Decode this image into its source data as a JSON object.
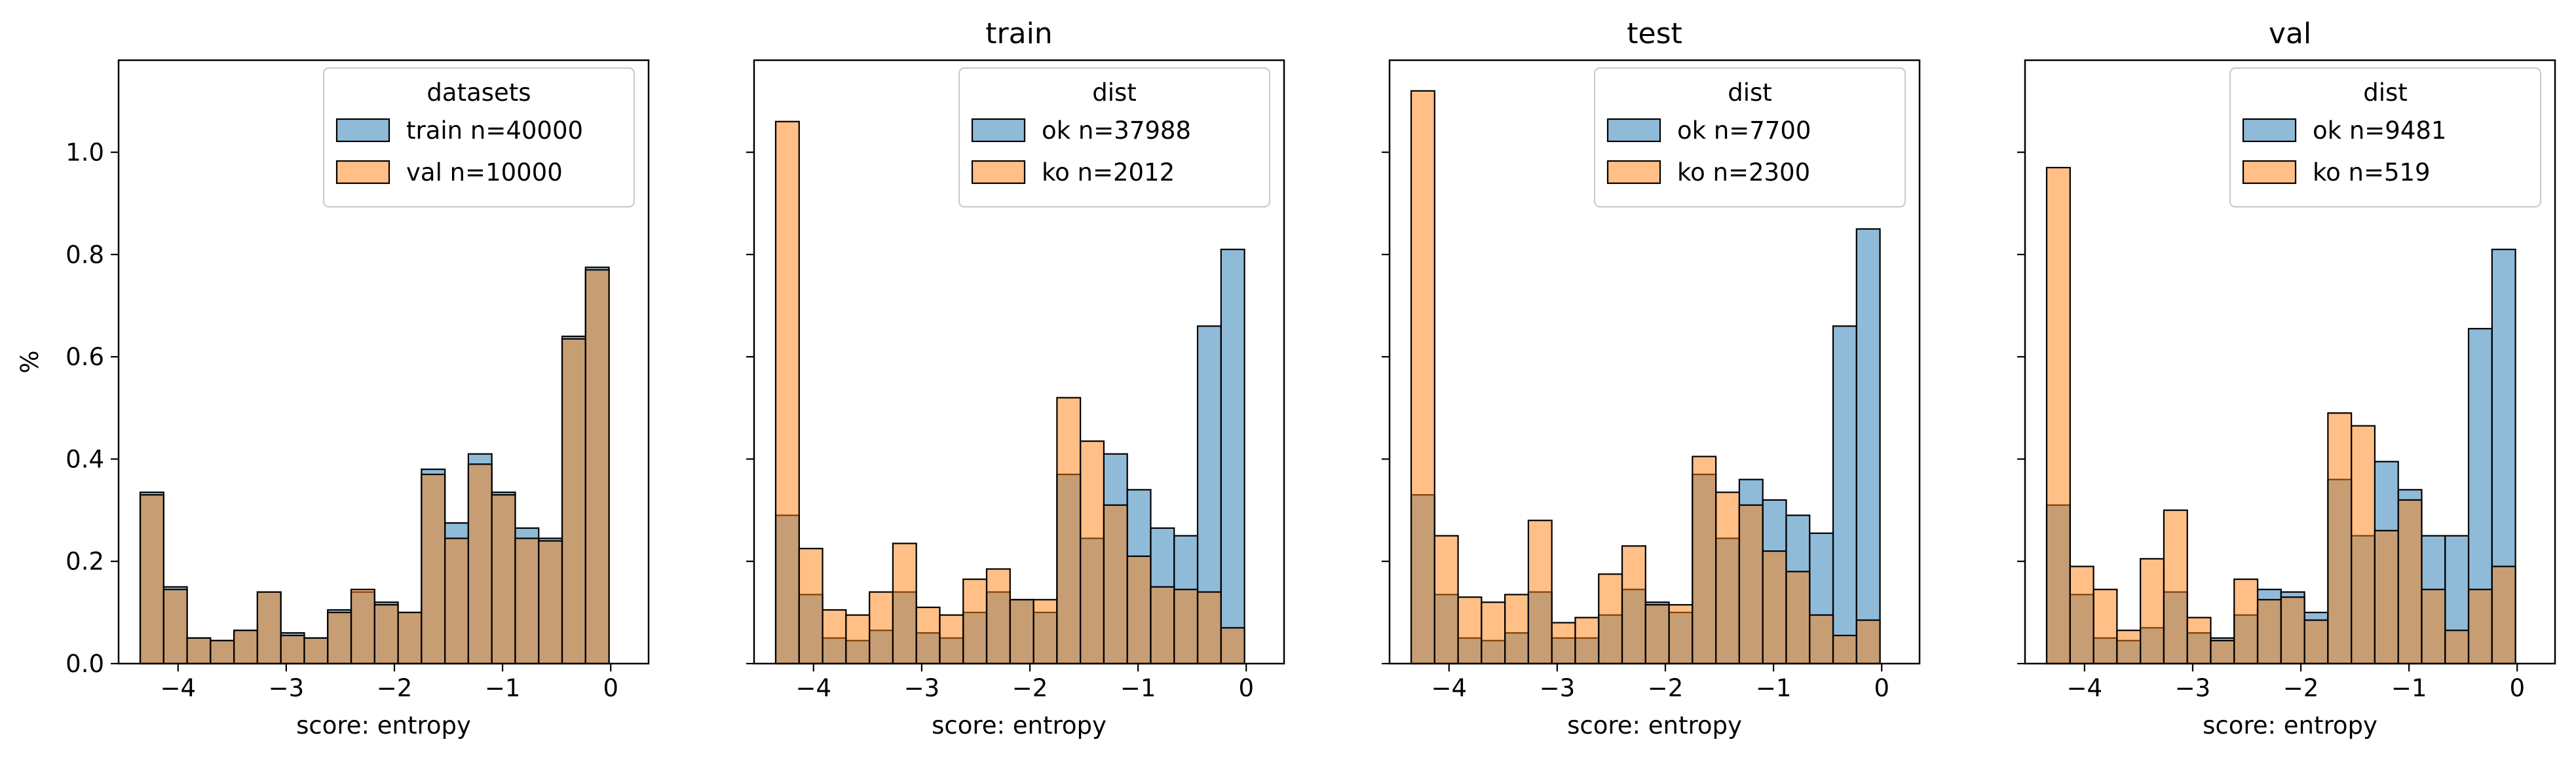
{
  "colors": {
    "series0": "#1f77b4",
    "series1": "#ff7f0e"
  },
  "chart_data": [
    {
      "type": "histogram",
      "title": "",
      "xlabel": "score: entropy",
      "ylabel": "%",
      "xlim": [
        -4.55,
        0.35
      ],
      "ylim": [
        0,
        1.18
      ],
      "xticks": [
        -4,
        -3,
        -2,
        -1,
        0
      ],
      "xtick_labels": [
        "−4",
        "−3",
        "−2",
        "−1",
        "0"
      ],
      "yticks": [
        0,
        0.2,
        0.4,
        0.6,
        0.8,
        1.0
      ],
      "ytick_labels": [
        "0.0",
        "0.2",
        "0.4",
        "0.6",
        "0.8",
        "1.0"
      ],
      "show_yticklabels": true,
      "legend": {
        "title": "datasets",
        "position": "top-right"
      },
      "bin_start": -4.35,
      "bin_width": 0.2167,
      "series": [
        {
          "name": "train n=40000",
          "values": [
            0.335,
            0.15,
            0.05,
            0.045,
            0.065,
            0.14,
            0.06,
            0.05,
            0.105,
            0.14,
            0.12,
            0.1,
            0.38,
            0.275,
            0.41,
            0.335,
            0.265,
            0.245,
            0.64,
            0.775
          ]
        },
        {
          "name": "val n=10000",
          "values": [
            0.33,
            0.145,
            0.05,
            0.045,
            0.065,
            0.14,
            0.055,
            0.05,
            0.1,
            0.145,
            0.115,
            0.1,
            0.37,
            0.245,
            0.39,
            0.33,
            0.245,
            0.24,
            0.635,
            0.77
          ]
        }
      ]
    },
    {
      "type": "histogram",
      "title": "train",
      "xlabel": "score: entropy",
      "ylabel": "",
      "xlim": [
        -4.55,
        0.35
      ],
      "ylim": [
        0,
        1.18
      ],
      "xticks": [
        -4,
        -3,
        -2,
        -1,
        0
      ],
      "xtick_labels": [
        "−4",
        "−3",
        "−2",
        "−1",
        "0"
      ],
      "yticks": [
        0,
        0.2,
        0.4,
        0.6,
        0.8,
        1.0
      ],
      "show_yticklabels": false,
      "legend": {
        "title": "dist",
        "position": "top-right"
      },
      "bin_start": -4.35,
      "bin_width": 0.2167,
      "series": [
        {
          "name": "ok n=37988",
          "values": [
            0.29,
            0.135,
            0.05,
            0.045,
            0.065,
            0.14,
            0.06,
            0.05,
            0.1,
            0.14,
            0.125,
            0.1,
            0.37,
            0.245,
            0.41,
            0.34,
            0.265,
            0.25,
            0.66,
            0.81
          ]
        },
        {
          "name": "ko n=2012",
          "values": [
            1.06,
            0.225,
            0.105,
            0.095,
            0.14,
            0.235,
            0.11,
            0.095,
            0.165,
            0.185,
            0.125,
            0.125,
            0.52,
            0.435,
            0.31,
            0.21,
            0.15,
            0.145,
            0.14,
            0.07
          ]
        }
      ]
    },
    {
      "type": "histogram",
      "title": "test",
      "xlabel": "score: entropy",
      "ylabel": "",
      "xlim": [
        -4.55,
        0.35
      ],
      "ylim": [
        0,
        1.18
      ],
      "xticks": [
        -4,
        -3,
        -2,
        -1,
        0
      ],
      "xtick_labels": [
        "−4",
        "−3",
        "−2",
        "−1",
        "0"
      ],
      "yticks": [
        0,
        0.2,
        0.4,
        0.6,
        0.8,
        1.0
      ],
      "show_yticklabels": false,
      "legend": {
        "title": "dist",
        "position": "top-right"
      },
      "bin_start": -4.35,
      "bin_width": 0.2167,
      "series": [
        {
          "name": "ok n=7700",
          "values": [
            0.33,
            0.135,
            0.05,
            0.045,
            0.06,
            0.14,
            0.05,
            0.05,
            0.095,
            0.145,
            0.12,
            0.1,
            0.37,
            0.245,
            0.36,
            0.32,
            0.29,
            0.255,
            0.66,
            0.85
          ]
        },
        {
          "name": "ko n=2300",
          "values": [
            1.12,
            0.25,
            0.13,
            0.12,
            0.135,
            0.28,
            0.08,
            0.09,
            0.175,
            0.23,
            0.115,
            0.115,
            0.405,
            0.335,
            0.31,
            0.22,
            0.18,
            0.095,
            0.055,
            0.085
          ]
        }
      ]
    },
    {
      "type": "histogram",
      "title": "val",
      "xlabel": "score: entropy",
      "ylabel": "",
      "xlim": [
        -4.55,
        0.35
      ],
      "ylim": [
        0,
        1.18
      ],
      "xticks": [
        -4,
        -3,
        -2,
        -1,
        0
      ],
      "xtick_labels": [
        "−4",
        "−3",
        "−2",
        "−1",
        "0"
      ],
      "yticks": [
        0,
        0.2,
        0.4,
        0.6,
        0.8,
        1.0
      ],
      "show_yticklabels": false,
      "legend": {
        "title": "dist",
        "position": "top-right"
      },
      "bin_start": -4.35,
      "bin_width": 0.2167,
      "series": [
        {
          "name": "ok n=9481",
          "values": [
            0.31,
            0.135,
            0.05,
            0.045,
            0.07,
            0.14,
            0.06,
            0.05,
            0.095,
            0.145,
            0.14,
            0.1,
            0.36,
            0.25,
            0.395,
            0.34,
            0.25,
            0.25,
            0.655,
            0.81
          ]
        },
        {
          "name": "ko n=519",
          "values": [
            0.97,
            0.19,
            0.145,
            0.065,
            0.205,
            0.3,
            0.09,
            0.045,
            0.165,
            0.125,
            0.13,
            0.085,
            0.49,
            0.465,
            0.26,
            0.32,
            0.145,
            0.065,
            0.145,
            0.19
          ]
        }
      ]
    }
  ]
}
